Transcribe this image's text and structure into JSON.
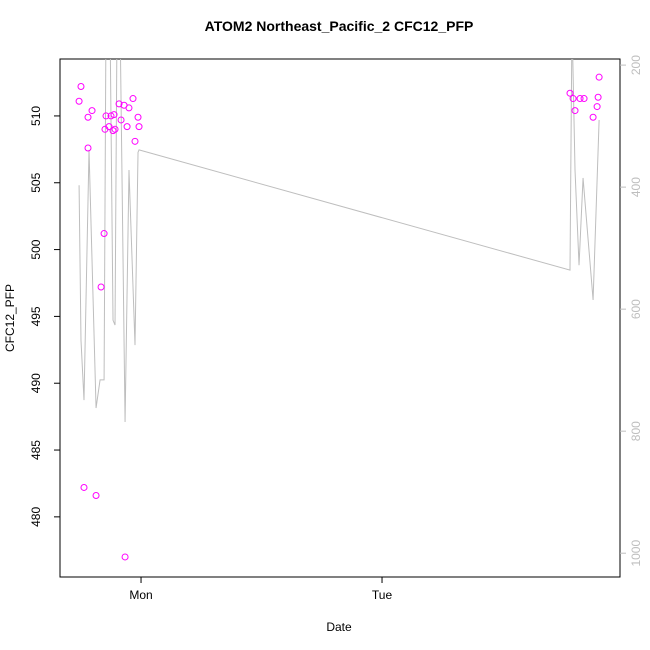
{
  "chart_data": {
    "type": "scatter",
    "title": "ATOM2 Northeast_Pacific_2 CFC12_PFP",
    "xlabel": "Date",
    "ylabel": "CFC12_PFP",
    "xlim": [
      -8.07,
      47.7
    ],
    "xticks": [
      {
        "value": 0,
        "label": "Mon"
      },
      {
        "value": 24,
        "label": "Tue"
      }
    ],
    "ylim": [
      475.5,
      514.26
    ],
    "yticks": [
      480,
      485,
      490,
      495,
      500,
      505,
      510
    ],
    "y2lim": [
      1039,
      190
    ],
    "y2ticks": [
      200,
      400,
      600,
      800,
      1000
    ],
    "grid": false,
    "series": [
      {
        "type": "scatter",
        "color": "#ff00ff",
        "x": [
          -6.17,
          -5.98,
          -5.68,
          -5.28,
          -5.28,
          -4.88,
          -4.48,
          -3.98,
          -3.68,
          -3.59,
          -3.49,
          -3.19,
          -2.99,
          -2.79,
          -2.69,
          -2.59,
          -2.19,
          -1.99,
          -1.69,
          -1.59,
          -1.39,
          -1.2,
          -0.8,
          -0.6,
          -0.3,
          -0.2,
          42.72,
          43.03,
          43.22,
          43.72,
          44.12,
          45.02,
          45.42,
          45.52,
          45.62
        ],
        "values": [
          511.1,
          512.2,
          482.2,
          509.9,
          507.6,
          510.4,
          481.6,
          497.2,
          501.2,
          509.0,
          510.0,
          509.2,
          510.0,
          508.9,
          510.1,
          509.0,
          510.9,
          509.7,
          510.8,
          477.0,
          509.2,
          510.6,
          511.3,
          508.1,
          509.9,
          509.2,
          511.7,
          511.3,
          510.4,
          511.3,
          511.3,
          509.9,
          510.7,
          511.4,
          512.9
        ]
      },
      {
        "type": "line",
        "color": "#bebebe",
        "axis": "y2",
        "x": [
          -6.17,
          -5.98,
          -5.68,
          -5.18,
          -4.48,
          -4.08,
          -3.68,
          -3.49,
          -3.09,
          -2.79,
          -2.59,
          -2.39,
          -2.09,
          -1.59,
          -1.2,
          -0.6,
          -0.3,
          -0.2,
          42.72,
          42.92,
          43.22,
          43.62,
          44.02,
          45.02,
          45.62
        ],
        "values": [
          397,
          651,
          749,
          339,
          762,
          716,
          716,
          126,
          126,
          618,
          626,
          126,
          126,
          785,
          372,
          659,
          343,
          339,
          536,
          126,
          372,
          528,
          385,
          585,
          290
        ]
      }
    ]
  }
}
